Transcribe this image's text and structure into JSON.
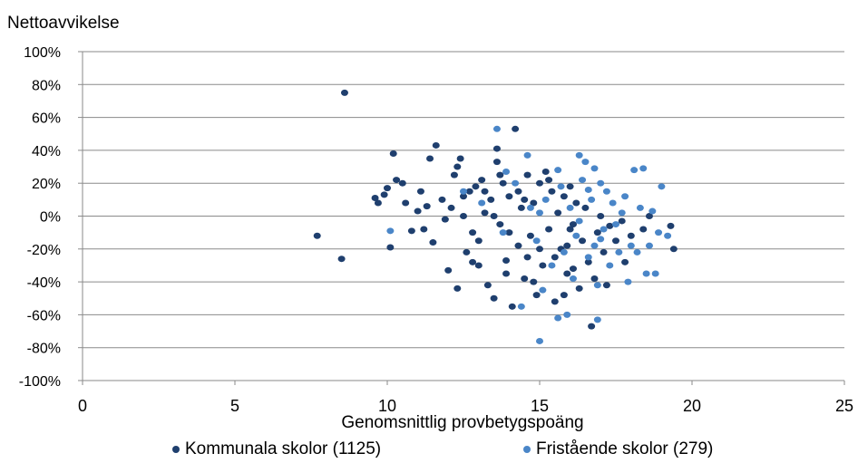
{
  "chart_data": {
    "type": "scatter",
    "ylabel": "Nettoavvikelse",
    "xlabel": "Genomsnittlig provbetygspoäng",
    "xlim": [
      0,
      25
    ],
    "ylim": [
      -100,
      100
    ],
    "x_ticks": [
      "0",
      "5",
      "10",
      "15",
      "20",
      "25"
    ],
    "y_ticks": [
      "100%",
      "80%",
      "60%",
      "40%",
      "20%",
      "0%",
      "-20%",
      "-40%",
      "-60%",
      "-80%",
      "-100%"
    ],
    "y_tick_values": [
      100,
      80,
      60,
      40,
      20,
      0,
      -20,
      -40,
      -60,
      -80,
      -100
    ],
    "x_tick_values": [
      0,
      5,
      10,
      15,
      20,
      25
    ],
    "grid": "horizontal",
    "legend_position": "bottom",
    "series": [
      {
        "name": "Kommunala skolor (1125)",
        "color": "#1f3f6e",
        "points": [
          [
            8.6,
            75
          ],
          [
            7.7,
            -12
          ],
          [
            8.5,
            -26
          ],
          [
            9.6,
            11
          ],
          [
            9.7,
            8
          ],
          [
            9.9,
            13
          ],
          [
            10.0,
            17
          ],
          [
            10.1,
            -19
          ],
          [
            10.2,
            38
          ],
          [
            10.3,
            22
          ],
          [
            10.5,
            20
          ],
          [
            10.6,
            8
          ],
          [
            10.8,
            -9
          ],
          [
            11.0,
            3
          ],
          [
            11.1,
            15
          ],
          [
            11.2,
            -8
          ],
          [
            11.3,
            6
          ],
          [
            11.4,
            35
          ],
          [
            11.5,
            -16
          ],
          [
            11.6,
            43
          ],
          [
            11.8,
            10
          ],
          [
            11.9,
            -2
          ],
          [
            12.0,
            -33
          ],
          [
            12.1,
            5
          ],
          [
            12.2,
            25
          ],
          [
            12.3,
            -44
          ],
          [
            12.3,
            30
          ],
          [
            12.4,
            35
          ],
          [
            12.5,
            12
          ],
          [
            12.6,
            -22
          ],
          [
            12.7,
            15
          ],
          [
            12.8,
            -10
          ],
          [
            12.9,
            18
          ],
          [
            13.0,
            -30
          ],
          [
            13.1,
            22
          ],
          [
            13.2,
            2
          ],
          [
            13.3,
            -42
          ],
          [
            13.4,
            10
          ],
          [
            13.5,
            -50
          ],
          [
            13.6,
            33
          ],
          [
            13.6,
            41
          ],
          [
            13.7,
            -5
          ],
          [
            13.8,
            20
          ],
          [
            13.9,
            -27
          ],
          [
            14.0,
            12
          ],
          [
            14.1,
            -55
          ],
          [
            14.2,
            53
          ],
          [
            14.3,
            -18
          ],
          [
            14.4,
            5
          ],
          [
            14.5,
            -38
          ],
          [
            14.6,
            25
          ],
          [
            14.7,
            -12
          ],
          [
            14.8,
            8
          ],
          [
            14.9,
            -48
          ],
          [
            15.0,
            20
          ],
          [
            15.1,
            -30
          ],
          [
            15.2,
            27
          ],
          [
            15.3,
            -8
          ],
          [
            15.4,
            15
          ],
          [
            15.5,
            -52
          ],
          [
            15.6,
            2
          ],
          [
            15.7,
            -20
          ],
          [
            15.8,
            12
          ],
          [
            15.9,
            -35
          ],
          [
            16.0,
            18
          ],
          [
            16.1,
            -5
          ],
          [
            16.2,
            8
          ],
          [
            16.3,
            -44
          ],
          [
            16.4,
            -15
          ],
          [
            16.5,
            5
          ],
          [
            16.6,
            -28
          ],
          [
            16.7,
            -67
          ],
          [
            16.8,
            -38
          ],
          [
            16.9,
            -10
          ],
          [
            17.0,
            0
          ],
          [
            17.1,
            -22
          ],
          [
            17.2,
            -42
          ],
          [
            17.3,
            -6
          ],
          [
            17.5,
            -15
          ],
          [
            17.7,
            -3
          ],
          [
            17.8,
            -28
          ],
          [
            18.0,
            -12
          ],
          [
            18.4,
            -8
          ],
          [
            18.6,
            0
          ],
          [
            19.3,
            -6
          ],
          [
            19.4,
            -20
          ],
          [
            13.0,
            -15
          ],
          [
            13.5,
            0
          ],
          [
            14.0,
            -10
          ],
          [
            14.5,
            10
          ],
          [
            15.0,
            -20
          ],
          [
            15.5,
            -25
          ],
          [
            16.0,
            -8
          ],
          [
            13.2,
            15
          ],
          [
            14.8,
            -40
          ],
          [
            15.8,
            -48
          ],
          [
            12.8,
            -28
          ],
          [
            13.7,
            25
          ],
          [
            14.3,
            15
          ],
          [
            15.3,
            22
          ],
          [
            16.1,
            -32
          ],
          [
            12.5,
            0
          ],
          [
            13.9,
            -35
          ],
          [
            14.6,
            -25
          ],
          [
            15.9,
            -18
          ]
        ]
      },
      {
        "name": "Fristående skolor (279)",
        "color": "#4a86c8",
        "points": [
          [
            10.1,
            -9
          ],
          [
            13.6,
            53
          ],
          [
            14.6,
            37
          ],
          [
            15.0,
            -76
          ],
          [
            15.6,
            -62
          ],
          [
            15.9,
            -60
          ],
          [
            16.1,
            -38
          ],
          [
            16.3,
            37
          ],
          [
            16.5,
            33
          ],
          [
            16.8,
            29
          ],
          [
            16.9,
            -63
          ],
          [
            17.0,
            20
          ],
          [
            17.2,
            15
          ],
          [
            17.4,
            8
          ],
          [
            17.5,
            -5
          ],
          [
            17.6,
            -22
          ],
          [
            17.8,
            12
          ],
          [
            18.0,
            -18
          ],
          [
            18.1,
            28
          ],
          [
            18.3,
            5
          ],
          [
            18.4,
            29
          ],
          [
            18.5,
            -35
          ],
          [
            18.6,
            -18
          ],
          [
            18.8,
            -35
          ],
          [
            18.9,
            -10
          ],
          [
            19.0,
            18
          ],
          [
            19.2,
            -12
          ],
          [
            12.5,
            15
          ],
          [
            13.1,
            8
          ],
          [
            13.8,
            -10
          ],
          [
            14.2,
            20
          ],
          [
            14.9,
            -15
          ],
          [
            15.2,
            10
          ],
          [
            15.4,
            -30
          ],
          [
            15.7,
            18
          ],
          [
            16.0,
            5
          ],
          [
            16.2,
            -12
          ],
          [
            16.4,
            22
          ],
          [
            16.6,
            -25
          ],
          [
            16.7,
            10
          ],
          [
            17.1,
            -8
          ],
          [
            17.3,
            -30
          ],
          [
            17.7,
            2
          ],
          [
            18.2,
            -22
          ],
          [
            15.1,
            -45
          ],
          [
            14.4,
            -55
          ],
          [
            16.9,
            -42
          ],
          [
            13.9,
            27
          ],
          [
            15.6,
            28
          ],
          [
            16.6,
            16
          ],
          [
            17.9,
            -40
          ],
          [
            18.7,
            3
          ],
          [
            15.0,
            2
          ],
          [
            16.3,
            -3
          ],
          [
            17.0,
            -14
          ],
          [
            14.7,
            5
          ],
          [
            15.8,
            -22
          ],
          [
            16.8,
            -18
          ]
        ]
      }
    ]
  }
}
